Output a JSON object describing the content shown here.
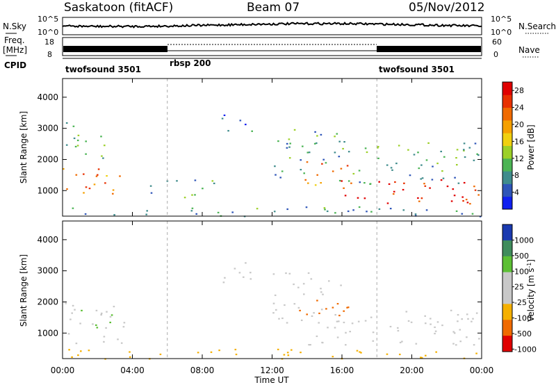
{
  "header": {
    "station": "Saskatoon (fitACF)",
    "beam": "Beam 07",
    "date": "05/Nov/2012"
  },
  "top_panels": {
    "nsky_label": "N.Sky",
    "nsky_ticks": [
      "10^5",
      "10^0"
    ],
    "nsearch_label": "N.Search",
    "freq_label_1": "Freq.",
    "freq_label_2": "[MHz]",
    "freq_ticks": [
      "18",
      "8"
    ],
    "nave_ticks": [
      "60",
      "0"
    ],
    "nave_label": "Nave",
    "cpid_label": "CPID",
    "cpid_segments": [
      {
        "name": "twofsound 3501",
        "start_hour": 0,
        "end_hour": 6
      },
      {
        "name": "rbsp 200",
        "start_hour": 6,
        "end_hour": 18
      },
      {
        "name": "twofsound 3501",
        "start_hour": 18,
        "end_hour": 24
      }
    ]
  },
  "x_axis": {
    "label": "Time UT",
    "ticks": [
      "00:00",
      "04:00",
      "08:00",
      "12:00",
      "16:00",
      "20:00",
      "00:00"
    ],
    "range_hours": [
      0,
      24
    ]
  },
  "chart_data": [
    {
      "type": "heatmap",
      "ylabel": "Slant Range [km]",
      "yticks": [
        "1000",
        "2000",
        "3000",
        "4000"
      ],
      "ylim_km": [
        180,
        4600
      ],
      "colorbar_label": "Power [dB]",
      "colorbar_ticks": [
        "4",
        "8",
        "12",
        "16",
        "20",
        "24",
        "28"
      ],
      "colorbar_range": [
        0,
        30
      ],
      "colors": [
        "#1020f0",
        "#2e55b8",
        "#3f8c8c",
        "#4bb454",
        "#9cd028",
        "#f0d010",
        "#f5a000",
        "#f06a00",
        "#e83000",
        "#e00000"
      ],
      "scatter_regions": [
        {
          "t": [
            0.0,
            3.5
          ],
          "r": [
            800,
            1800
          ],
          "value": 22
        },
        {
          "t": [
            0.0,
            2.5
          ],
          "r": [
            2000,
            3200
          ],
          "value": 10
        },
        {
          "t": [
            5.0,
            9.0
          ],
          "r": [
            800,
            1400
          ],
          "value": 10
        },
        {
          "t": [
            9.0,
            11.0
          ],
          "r": [
            2800,
            3500
          ],
          "value": 6
        },
        {
          "t": [
            12.0,
            16.0
          ],
          "r": [
            1300,
            3000
          ],
          "value": 8
        },
        {
          "t": [
            13.5,
            16.5
          ],
          "r": [
            1200,
            2000
          ],
          "value": 22
        },
        {
          "t": [
            15.0,
            24.0
          ],
          "r": [
            600,
            1400
          ],
          "value": 26
        },
        {
          "t": [
            16.0,
            24.0
          ],
          "r": [
            1200,
            2600
          ],
          "value": 10
        },
        {
          "t": [
            0.0,
            24.0
          ],
          "r": [
            180,
            500
          ],
          "value": 8
        }
      ]
    },
    {
      "type": "heatmap",
      "ylabel": "Slant Range [km]",
      "yticks": [
        "1000",
        "2000",
        "3000",
        "4000"
      ],
      "ylim_km": [
        180,
        4600
      ],
      "colorbar_label": "Velocity [m s",
      "colorbar_label_sup": "-1",
      "colorbar_label_end": "]",
      "colorbar_ticks": [
        "1000",
        "500",
        "100",
        "25",
        "-25",
        "-100",
        "-500",
        "-1000"
      ],
      "colors": [
        "#1a3ab0",
        "#3f8c5c",
        "#5cbf34",
        "#c8c8c8",
        "#c8c8c8",
        "#f5b000",
        "#f06a00",
        "#e00000"
      ],
      "scatter_regions": [
        {
          "t": [
            0.0,
            3.5
          ],
          "r": [
            600,
            2000
          ],
          "value": 25
        },
        {
          "t": [
            1.0,
            3.0
          ],
          "r": [
            1200,
            1800
          ],
          "value": 100
        },
        {
          "t": [
            9.0,
            11.0
          ],
          "r": [
            2600,
            3500
          ],
          "value": 25
        },
        {
          "t": [
            12.0,
            16.0
          ],
          "r": [
            1300,
            3000
          ],
          "value": 25
        },
        {
          "t": [
            13.5,
            16.5
          ],
          "r": [
            1300,
            2100
          ],
          "value": -500
        },
        {
          "t": [
            14.0,
            24.0
          ],
          "r": [
            600,
            1800
          ],
          "value": 0
        },
        {
          "t": [
            0.0,
            24.0
          ],
          "r": [
            180,
            500
          ],
          "value": -100
        }
      ]
    }
  ]
}
